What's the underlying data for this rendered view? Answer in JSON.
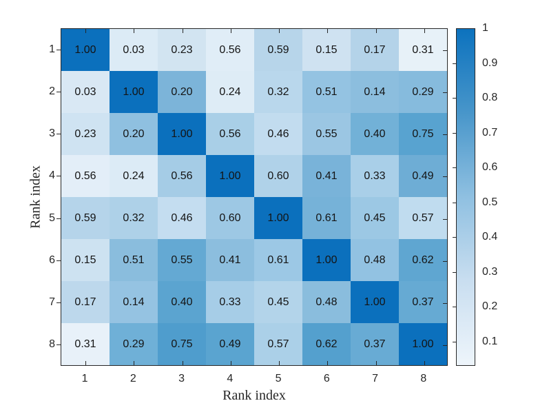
{
  "figure": {
    "background": "#ffffff",
    "axis_color": "#262626",
    "value_text_color": "#141414"
  },
  "chart_data": {
    "type": "heatmap",
    "title": "",
    "xlabel": "Rank index",
    "ylabel": "Rank index",
    "x_ticks": [
      "1",
      "2",
      "3",
      "4",
      "5",
      "6",
      "7",
      "8"
    ],
    "y_ticks": [
      "1",
      "2",
      "3",
      "4",
      "5",
      "6",
      "7",
      "8"
    ],
    "values": [
      [
        "1.00",
        "0.03",
        "0.23",
        "0.56",
        "0.59",
        "0.15",
        "0.17",
        "0.31"
      ],
      [
        "0.03",
        "1.00",
        "0.20",
        "0.24",
        "0.32",
        "0.51",
        "0.14",
        "0.29"
      ],
      [
        "0.23",
        "0.20",
        "1.00",
        "0.56",
        "0.46",
        "0.55",
        "0.40",
        "0.75"
      ],
      [
        "0.56",
        "0.24",
        "0.56",
        "1.00",
        "0.60",
        "0.41",
        "0.33",
        "0.49"
      ],
      [
        "0.59",
        "0.32",
        "0.46",
        "0.60",
        "1.00",
        "0.61",
        "0.45",
        "0.57"
      ],
      [
        "0.15",
        "0.51",
        "0.55",
        "0.41",
        "0.61",
        "1.00",
        "0.48",
        "0.62"
      ],
      [
        "0.17",
        "0.14",
        "0.40",
        "0.33",
        "0.45",
        "0.48",
        "1.00",
        "0.37"
      ],
      [
        "0.31",
        "0.29",
        "0.75",
        "0.49",
        "0.57",
        "0.62",
        "0.37",
        "1.00"
      ]
    ],
    "cell_colors": [
      [
        "#0b70bd",
        "#dcebf6",
        "#d2e4f1",
        "#e0edf7",
        "#b7d5ea",
        "#cfe2f1",
        "#b4d3e9",
        "#e7f1f8"
      ],
      [
        "#d9e8f4",
        "#0b70bd",
        "#7cb4d9",
        "#deecf6",
        "#b9d7ec",
        "#94c3e2",
        "#8cbede",
        "#86bbdd"
      ],
      [
        "#cfe3f2",
        "#8fc0e0",
        "#0b70bd",
        "#a9cfe7",
        "#c2dcef",
        "#9bc6e3",
        "#72b1d7",
        "#58a3d0"
      ],
      [
        "#e3eef8",
        "#dcebf6",
        "#a5cce6",
        "#0b70bd",
        "#b0d2e9",
        "#79b3d9",
        "#a9cfe8",
        "#6eadd5"
      ],
      [
        "#b5d4ea",
        "#aed1e8",
        "#c4ddf0",
        "#9dc8e4",
        "#0b70bd",
        "#76b2d8",
        "#9cc8e4",
        "#c0dcef"
      ],
      [
        "#cde2f1",
        "#8abddd",
        "#64a9d3",
        "#8cbede",
        "#9cc8e5",
        "#0b70bd",
        "#92c2e2",
        "#5fa6d1"
      ],
      [
        "#bdd8ec",
        "#95c3e2",
        "#5ba4d0",
        "#a6cde7",
        "#b3d4ea",
        "#8abddd",
        "#0b70bd",
        "#66aad3"
      ],
      [
        "#e8f1f9",
        "#6fb0d7",
        "#4f9dcd",
        "#5aa4d0",
        "#abd0e8",
        "#54a0ce",
        "#68abd4",
        "#0b70bd"
      ]
    ],
    "colorbar": {
      "vmin": 0.03,
      "vmax": 1,
      "tick_labels": [
        "1",
        "0.9",
        "0.8",
        "0.7",
        "0.6",
        "0.5",
        "0.4",
        "0.3",
        "0.2",
        "0.1"
      ],
      "tick_values": [
        1,
        0.9,
        0.8,
        0.7,
        0.6,
        0.5,
        0.4,
        0.3,
        0.2,
        0.1
      ],
      "gradient_stops": [
        "#eef5fb",
        "#c9def0",
        "#8fc0e1",
        "#4896ca",
        "#0c72be"
      ]
    },
    "legend": null,
    "grid": false
  }
}
